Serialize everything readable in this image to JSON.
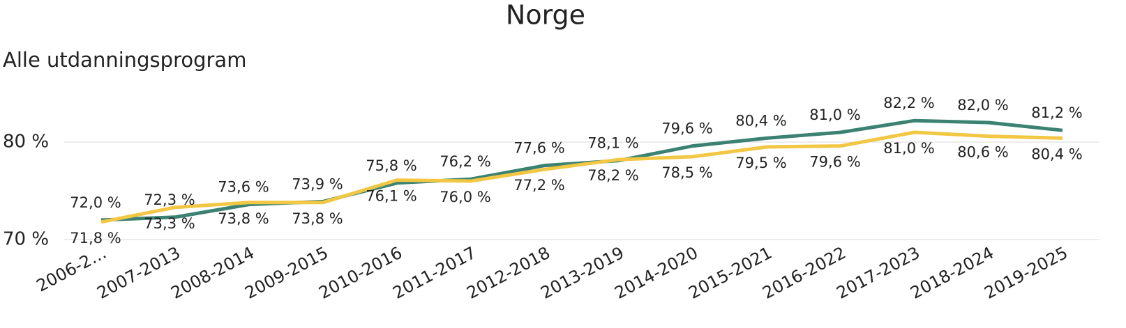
{
  "chart_data": {
    "type": "line",
    "title": "Norge",
    "subtitle": "Alle utdanningsprogram",
    "categories": [
      "2006-2…",
      "2007-2013",
      "2008-2014",
      "2009-2015",
      "2010-2016",
      "2011-2017",
      "2012-2018",
      "2013-2019",
      "2014-2020",
      "2015-2021",
      "2016-2022",
      "2017-2023",
      "2018-2024",
      "2019-2025"
    ],
    "series": [
      {
        "color": "#3b8272",
        "label_position": "above",
        "values": [
          72.0,
          72.3,
          73.6,
          73.9,
          75.8,
          76.2,
          77.6,
          78.1,
          79.6,
          80.4,
          81.0,
          82.2,
          82.0,
          81.2
        ],
        "value_labels": [
          "72,0 %",
          "72,3 %",
          "73,6 %",
          "73,9 %",
          "75,8 %",
          "76,2 %",
          "77,6 %",
          "78,1 %",
          "79,6 %",
          "80,4 %",
          "81,0 %",
          "82,2 %",
          "82,0 %",
          "81,2 %"
        ]
      },
      {
        "color": "#f2c744",
        "label_position": "below",
        "values": [
          71.8,
          73.3,
          73.8,
          73.8,
          76.1,
          76.0,
          77.2,
          78.2,
          78.5,
          79.5,
          79.6,
          81.0,
          80.6,
          80.4
        ],
        "value_labels": [
          "71,8 %",
          "73,3 %",
          "73,8 %",
          "73,8 %",
          "76,1 %",
          "76,0 %",
          "77,2 %",
          "78,2 %",
          "78,5 %",
          "79,5 %",
          "79,6 %",
          "81,0 %",
          "80,6 %",
          "80,4 %"
        ]
      }
    ],
    "ylim": [
      70,
      85
    ],
    "yticks": [
      {
        "value": 70,
        "label": "70 %"
      },
      {
        "value": 80,
        "label": "80 %"
      }
    ],
    "grid": true
  }
}
